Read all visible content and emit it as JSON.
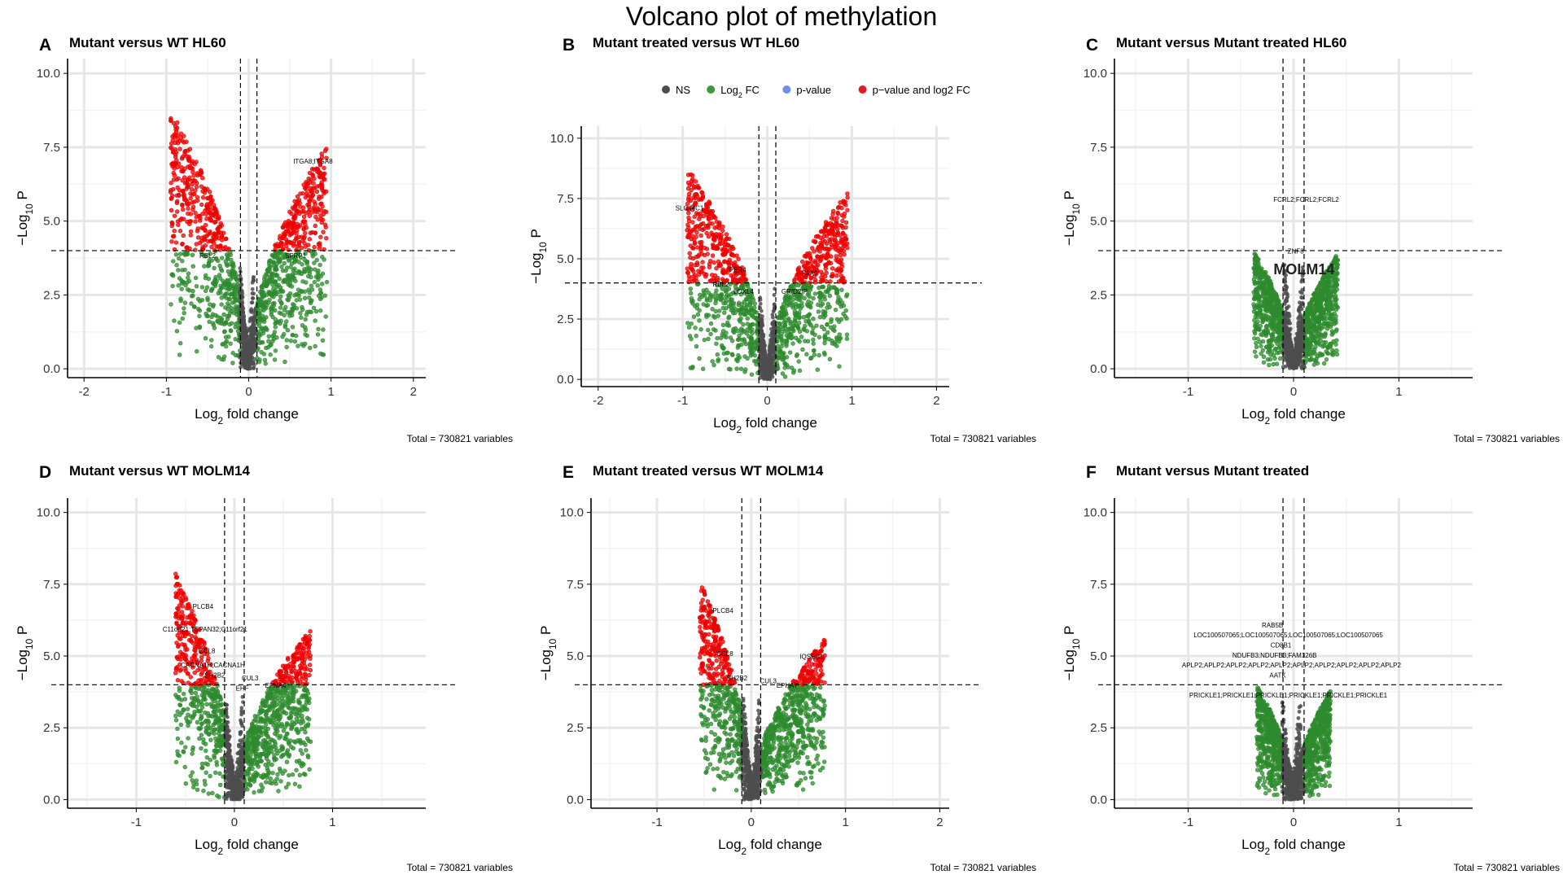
{
  "title": "Volcano plot of methylation",
  "legend": {
    "items": [
      {
        "label": "NS",
        "color": "#4d4d4d"
      },
      {
        "label": "Log2 FC",
        "color": "#3a9a3a"
      },
      {
        "label": "p-value",
        "color": "#6f8fe6"
      },
      {
        "label": "p−value and log2 FC",
        "color": "#e41a1c"
      }
    ]
  },
  "colors": {
    "ns": "#4d4d4d",
    "fc": "#2e8b2e",
    "p": "#6f8fe6",
    "both": "#ee0000"
  },
  "chart_data": [
    {
      "type": "scatter",
      "letter": "A",
      "title": "Mutant versus WT  HL60",
      "xlabel": "Log2 fold change",
      "ylabel": "−Log10 P",
      "caption": "Total = 730821 variables",
      "xlim": [
        -2.2,
        2.15
      ],
      "ylim": [
        -0.3,
        10.5
      ],
      "xticks": [
        -2,
        -1,
        0,
        1,
        2
      ],
      "yticks": [
        0.0,
        2.5,
        5.0,
        7.5,
        10.0
      ],
      "fc_cutoff": 0.1,
      "p_cutoff": 4.0,
      "envelope": {
        "xmin": -0.95,
        "xmax": 0.95,
        "ymax_left": 8.8,
        "ymax_right": 7.6,
        "min_x": -0.02,
        "depth": 0.0
      },
      "labels": [
        {
          "text": "ITGA8;ITGA8",
          "x": 0.78,
          "y": 6.95
        },
        {
          "text": "RBL2",
          "x": -0.5,
          "y": 3.75
        },
        {
          "text": "SFRP1",
          "x": 0.57,
          "y": 3.75
        }
      ]
    },
    {
      "type": "scatter",
      "letter": "B",
      "title": "Mutant treated versus WT HL60",
      "xlabel": "Log2 fold change",
      "ylabel": "−Log10 P",
      "caption": "Total = 730821 variables",
      "xlim": [
        -2.2,
        2.15
      ],
      "ylim": [
        -0.3,
        10.5
      ],
      "xticks": [
        -2,
        -1,
        0,
        1,
        2
      ],
      "yticks": [
        0.0,
        2.5,
        5.0,
        7.5,
        10.0
      ],
      "fc_cutoff": 0.1,
      "p_cutoff": 4.0,
      "envelope": {
        "xmin": -0.95,
        "xmax": 0.95,
        "ymax_left": 8.8,
        "ymax_right": 7.8,
        "min_x": 0.0,
        "depth": 0.0
      },
      "labels": [
        {
          "text": "SLC44C1",
          "x": -0.92,
          "y": 7.0
        },
        {
          "text": "PER4",
          "x": -0.35,
          "y": 4.45
        },
        {
          "text": "PAX9",
          "x": 0.5,
          "y": 4.3
        },
        {
          "text": "RBL2",
          "x": -0.55,
          "y": 3.85
        },
        {
          "text": "LOXL4",
          "x": -0.28,
          "y": 3.55
        },
        {
          "text": "GRID2IP",
          "x": 0.32,
          "y": 3.55
        }
      ]
    },
    {
      "type": "scatter",
      "letter": "C",
      "title": "Mutant versus Mutant treated  HL60",
      "xlabel": "Log2 fold change",
      "ylabel": "−Log10 P",
      "caption": "Total = 730821 variables",
      "xlim": [
        -1.7,
        1.7
      ],
      "ylim": [
        -0.3,
        10.5
      ],
      "xticks": [
        -1,
        0,
        1
      ],
      "yticks": [
        0.0,
        2.5,
        5.0,
        7.5,
        10.0
      ],
      "fc_cutoff": 0.1,
      "p_cutoff": 4.0,
      "envelope": {
        "xmin": -0.38,
        "xmax": 0.42,
        "ymax_left": 4.0,
        "ymax_right": 3.9,
        "min_x": 0.0,
        "depth": 0.0,
        "red_max": 6.1
      },
      "watermark": "MOLM14",
      "labels": [
        {
          "text": "FCRL2;FCRL2;FCRL2",
          "x": 0.12,
          "y": 5.65
        },
        {
          "text": "ZNF8",
          "x": 0.02,
          "y": 3.9
        }
      ]
    },
    {
      "type": "scatter",
      "letter": "D",
      "title": "Mutant versus WT  MOLM14",
      "xlabel": "Log2 fold change",
      "ylabel": "−Log10 P",
      "caption": "Total = 730821 variables",
      "xlim": [
        -1.7,
        1.95
      ],
      "ylim": [
        -0.3,
        10.5
      ],
      "xticks": [
        -1,
        0,
        1
      ],
      "yticks": [
        0.0,
        2.5,
        5.0,
        7.5,
        10.0
      ],
      "fc_cutoff": 0.1,
      "p_cutoff": 4.0,
      "envelope": {
        "xmin": -0.6,
        "xmax": 0.78,
        "ymax_left": 7.9,
        "ymax_right": 6.0,
        "min_x": 0.0,
        "depth": 0.0
      },
      "labels": [
        {
          "text": "PLCB4",
          "x": -0.32,
          "y": 6.65
        },
        {
          "text": "C11orf21;TSPAN32;C11orf21",
          "x": -0.3,
          "y": 5.85
        },
        {
          "text": "CCL8",
          "x": -0.28,
          "y": 5.1
        },
        {
          "text": "CACNA1H;CACNA1H",
          "x": -0.22,
          "y": 4.6
        },
        {
          "text": "SH2B2",
          "x": -0.2,
          "y": 4.25
        },
        {
          "text": "CUL3",
          "x": 0.16,
          "y": 4.15
        },
        {
          "text": "EHF",
          "x": 0.08,
          "y": 3.8
        },
        {
          "text": "EFNA4",
          "x": 0.42,
          "y": 3.9
        }
      ]
    },
    {
      "type": "scatter",
      "letter": "E",
      "title": "Mutant treated versus WT  MOLM14",
      "xlabel": "Log2 fold change",
      "ylabel": "−Log10 P",
      "caption": "Total = 730821 variables",
      "xlim": [
        -1.7,
        2.1
      ],
      "ylim": [
        -0.3,
        10.5
      ],
      "xticks": [
        -1,
        0,
        1,
        2
      ],
      "yticks": [
        0.0,
        2.5,
        5.0,
        7.5,
        10.0
      ],
      "fc_cutoff": 0.1,
      "p_cutoff": 4.0,
      "envelope": {
        "xmin": -0.55,
        "xmax": 0.78,
        "ymax_left": 7.7,
        "ymax_right": 5.6,
        "min_x": 0.0,
        "depth": -0.05
      },
      "labels": [
        {
          "text": "PLCB4",
          "x": -0.3,
          "y": 6.5
        },
        {
          "text": "CCL8",
          "x": -0.28,
          "y": 5.0
        },
        {
          "text": "SH2B2",
          "x": -0.15,
          "y": 4.15
        },
        {
          "text": "CUL3",
          "x": 0.18,
          "y": 4.05
        },
        {
          "text": "EPHA7",
          "x": 0.38,
          "y": 3.9
        },
        {
          "text": "IQSEC1",
          "x": 0.64,
          "y": 4.9
        }
      ]
    },
    {
      "type": "scatter",
      "letter": "F",
      "title": "Mutant versus Mutant treated",
      "xlabel": "Log2 fold change",
      "ylabel": "−Log10 P",
      "caption": "Total = 730821 variables",
      "xlim": [
        -1.7,
        1.7
      ],
      "ylim": [
        -0.3,
        10.5
      ],
      "xticks": [
        -1,
        0,
        1
      ],
      "yticks": [
        0.0,
        2.5,
        5.0,
        7.5,
        10.0
      ],
      "fc_cutoff": 0.1,
      "p_cutoff": 4.0,
      "envelope": {
        "xmin": -0.35,
        "xmax": 0.35,
        "ymax_left": 4.0,
        "ymax_right": 3.8,
        "min_x": -0.02,
        "depth": 0.0,
        "red_max": 6.3
      },
      "labels": [
        {
          "text": "RAB5B",
          "x": -0.2,
          "y": 6.0
        },
        {
          "text": "LOC100507065;LOC100507065;LOC100507065;LOC100507065",
          "x": -0.05,
          "y": 5.65
        },
        {
          "text": "CD8B1",
          "x": -0.12,
          "y": 5.3
        },
        {
          "text": "NDUFB3;NDUFB3;FAM126B",
          "x": -0.18,
          "y": 4.95
        },
        {
          "text": "APLP2;APLP2;APLP2;APLP2;APLP2;APLP2;APLP2;APLP2;APLP2;APLP2",
          "x": -0.02,
          "y": 4.6
        },
        {
          "text": "AATK",
          "x": -0.15,
          "y": 4.25
        },
        {
          "text": "PRICKLE1;PRICKLE1;PRICKLE1;PRICKLE1;PRICKLE1;PRICKLE1",
          "x": -0.05,
          "y": 3.55
        }
      ]
    }
  ]
}
